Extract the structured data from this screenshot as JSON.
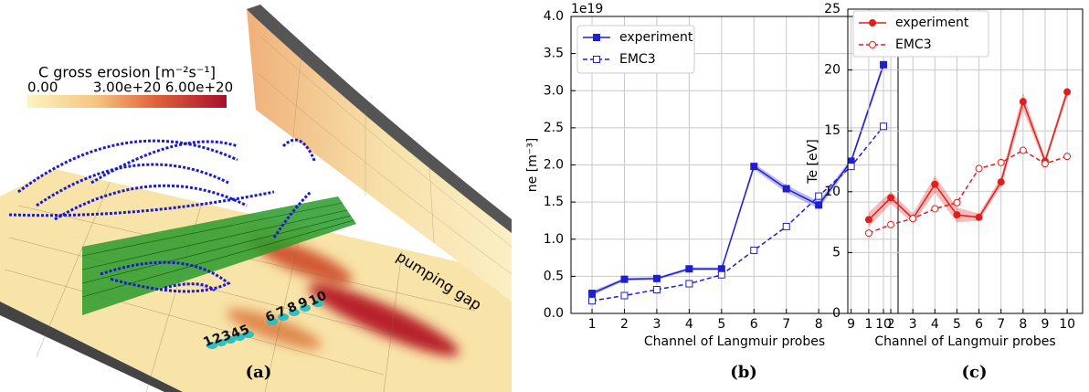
{
  "panel_a": {
    "colorbar_label": "C gross erosion [m⁻²s⁻¹]",
    "colorbar_lim": [
      0,
      6e+20
    ],
    "colorbar_ticks": [
      {
        "value": 0,
        "label": "0.00"
      },
      {
        "value": 3e+20,
        "label": "3.00e+20"
      },
      {
        "value": 6e+20,
        "label": "6.00e+20"
      }
    ],
    "annotation": "pumping gap",
    "probe_labels": [
      "1",
      "2",
      "3",
      "4",
      "5",
      "6",
      "7",
      "8",
      "9",
      "10"
    ],
    "caption": "(a)"
  },
  "chart_data": [
    {
      "type": "line",
      "caption": "(b)",
      "ylabel": "ne [m⁻³]",
      "xlabel": "Channel of Langmuir probes",
      "y_offset_label": "1e19",
      "x": [
        1,
        2,
        3,
        4,
        5,
        6,
        7,
        8,
        9,
        10
      ],
      "xlim": [
        0.35,
        10.45
      ],
      "xticks": [
        1,
        2,
        3,
        4,
        5,
        6,
        7,
        8,
        9,
        10
      ],
      "ylim": [
        0,
        4
      ],
      "yticks": [
        {
          "value": 0,
          "label": "0.0"
        },
        {
          "value": 0.5,
          "label": "0.5"
        },
        {
          "value": 1,
          "label": "1.0"
        },
        {
          "value": 1.5,
          "label": "1.5"
        },
        {
          "value": 2,
          "label": "2.0"
        },
        {
          "value": 2.5,
          "label": "2.5"
        },
        {
          "value": 3,
          "label": "3.0"
        },
        {
          "value": 3.5,
          "label": "3.5"
        },
        {
          "value": 4,
          "label": "4.0"
        }
      ],
      "grid": true,
      "legend": "upper left",
      "series": [
        {
          "name": "experiment",
          "color": "#1f1fd0",
          "marker": "square",
          "filled": true,
          "linestyle": "solid",
          "values": [
            0.27,
            0.46,
            0.47,
            0.6,
            0.6,
            1.98,
            1.68,
            1.46,
            2.05,
            3.35
          ],
          "errors": [
            0.03,
            0.02,
            0.02,
            0.02,
            0.02,
            0.04,
            0.05,
            0.05,
            0.04,
            0.05
          ]
        },
        {
          "name": "EMC3",
          "color": "#1f1fd0",
          "marker": "square",
          "filled": false,
          "linestyle": "dashed",
          "values": [
            0.17,
            0.24,
            0.32,
            0.4,
            0.52,
            0.85,
            1.17,
            1.58,
            1.98,
            2.52
          ]
        }
      ]
    },
    {
      "type": "line",
      "caption": "(c)",
      "ylabel": "Te [eV]",
      "xlabel": "Channel of Langmuir probes",
      "x": [
        1,
        2,
        3,
        4,
        5,
        6,
        7,
        8,
        9,
        10
      ],
      "xlim": [
        0.05,
        10.7
      ],
      "xticks": [
        1,
        2,
        3,
        4,
        5,
        6,
        7,
        8,
        9,
        10
      ],
      "ylim": [
        0,
        25
      ],
      "yticks": [
        0,
        5,
        10,
        15,
        20,
        25
      ],
      "grid": true,
      "legend": "upper left",
      "series": [
        {
          "name": "experiment",
          "color": "#e01e1e",
          "marker": "circle",
          "filled": true,
          "linestyle": "solid",
          "values": [
            7.7,
            9.5,
            7.8,
            10.6,
            8.1,
            7.9,
            10.8,
            17.4,
            12.5,
            18.2
          ],
          "errors": [
            0.6,
            0.5,
            0.4,
            0.7,
            0.6,
            0.3,
            0.4,
            0.7,
            0.3,
            0.4
          ]
        },
        {
          "name": "EMC3",
          "color": "#e01e1e",
          "marker": "circle",
          "filled": false,
          "linestyle": "dashed",
          "values": [
            6.6,
            7.3,
            7.8,
            8.6,
            9.1,
            11.9,
            12.4,
            13.4,
            12.3,
            12.9
          ]
        }
      ]
    }
  ]
}
